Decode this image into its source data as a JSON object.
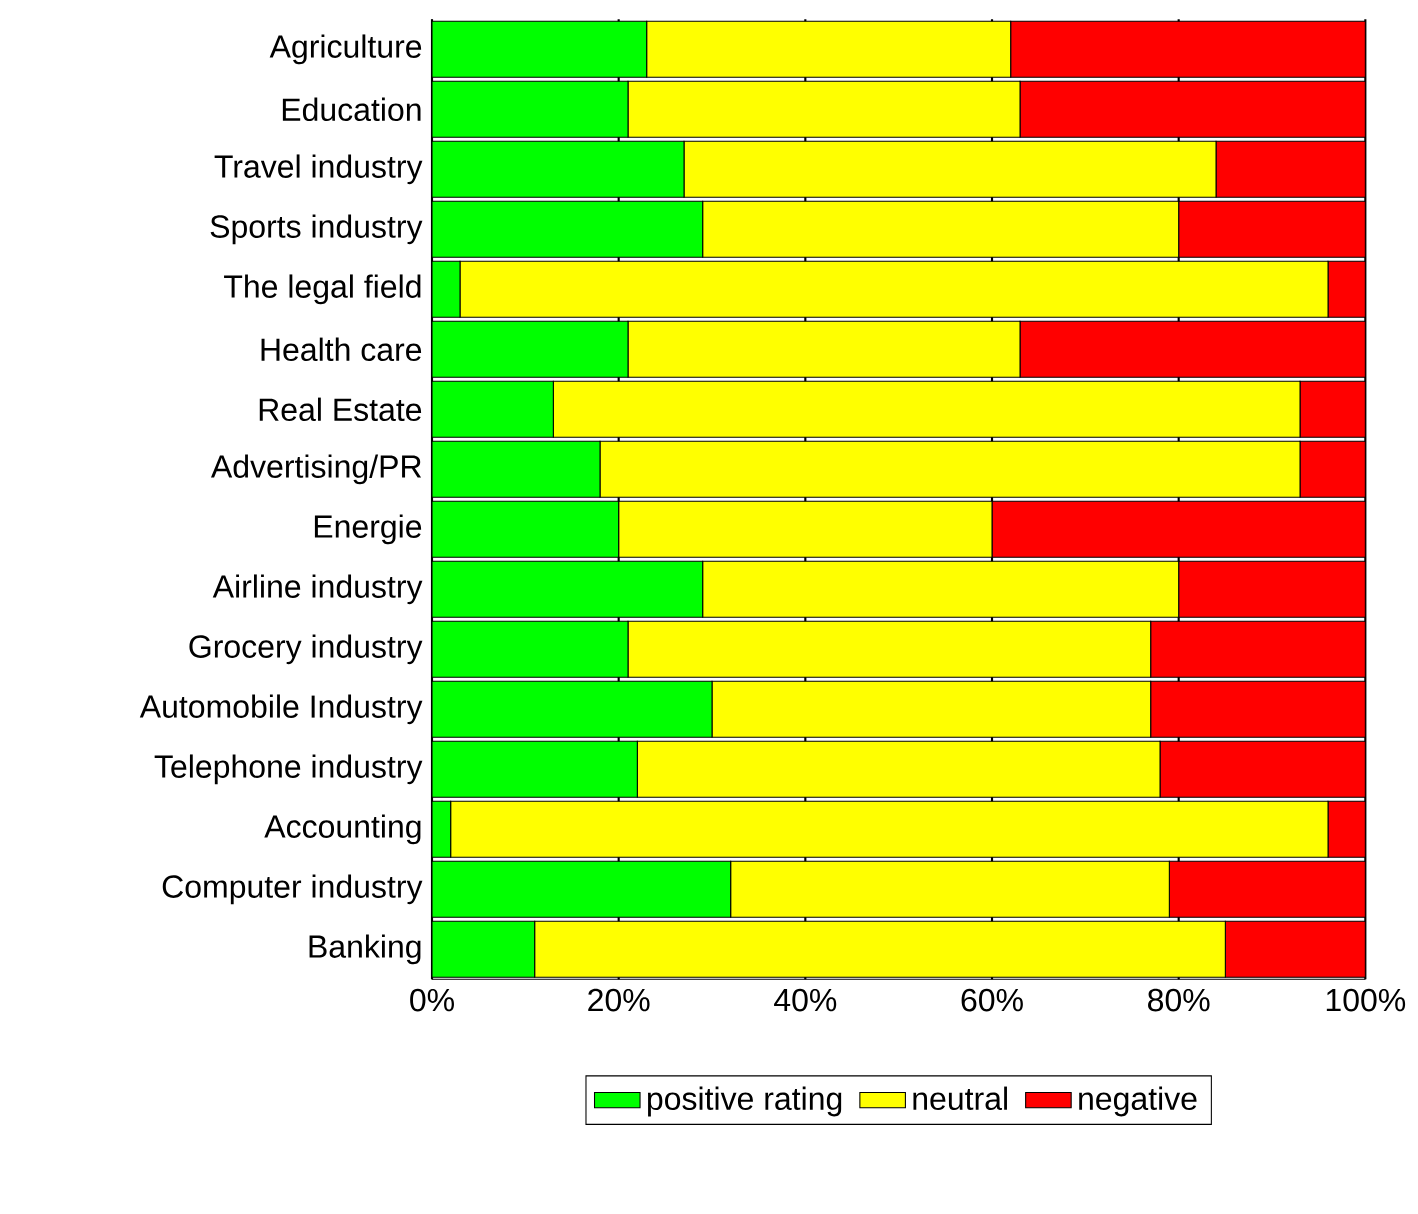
{
  "chart_data": {
    "type": "bar",
    "orientation": "horizontal",
    "stacked": true,
    "categories": [
      "Agriculture",
      "Education",
      "Travel industry",
      "Sports industry",
      "The legal field",
      "Health care",
      "Real Estate",
      "Advertising/PR",
      "Energie",
      "Airline industry",
      "Grocery industry",
      "Automobile Industry",
      "Telephone industry",
      "Accounting",
      "Computer industry",
      "Banking"
    ],
    "series": [
      {
        "name": "positive rating",
        "color": "#00ff00",
        "values": [
          23,
          21,
          27,
          29,
          3,
          21,
          13,
          18,
          20,
          29,
          21,
          30,
          22,
          2,
          32,
          11
        ]
      },
      {
        "name": "neutral",
        "color": "#ffff00",
        "values": [
          39,
          42,
          57,
          51,
          93,
          42,
          80,
          75,
          40,
          51,
          56,
          47,
          56,
          94,
          47,
          74
        ]
      },
      {
        "name": "negative",
        "color": "#ff0000",
        "values": [
          38,
          37,
          16,
          20,
          4,
          37,
          7,
          7,
          40,
          20,
          23,
          23,
          22,
          4,
          21,
          15
        ]
      }
    ],
    "xlim": [
      0,
      100
    ],
    "xticks": [
      {
        "value": 0,
        "label": "0%"
      },
      {
        "value": 20,
        "label": "20%"
      },
      {
        "value": 40,
        "label": "40%"
      },
      {
        "value": 60,
        "label": "60%"
      },
      {
        "value": 80,
        "label": "80%"
      },
      {
        "value": 100,
        "label": "100%"
      }
    ],
    "grid": "x",
    "legend": "bottom"
  }
}
